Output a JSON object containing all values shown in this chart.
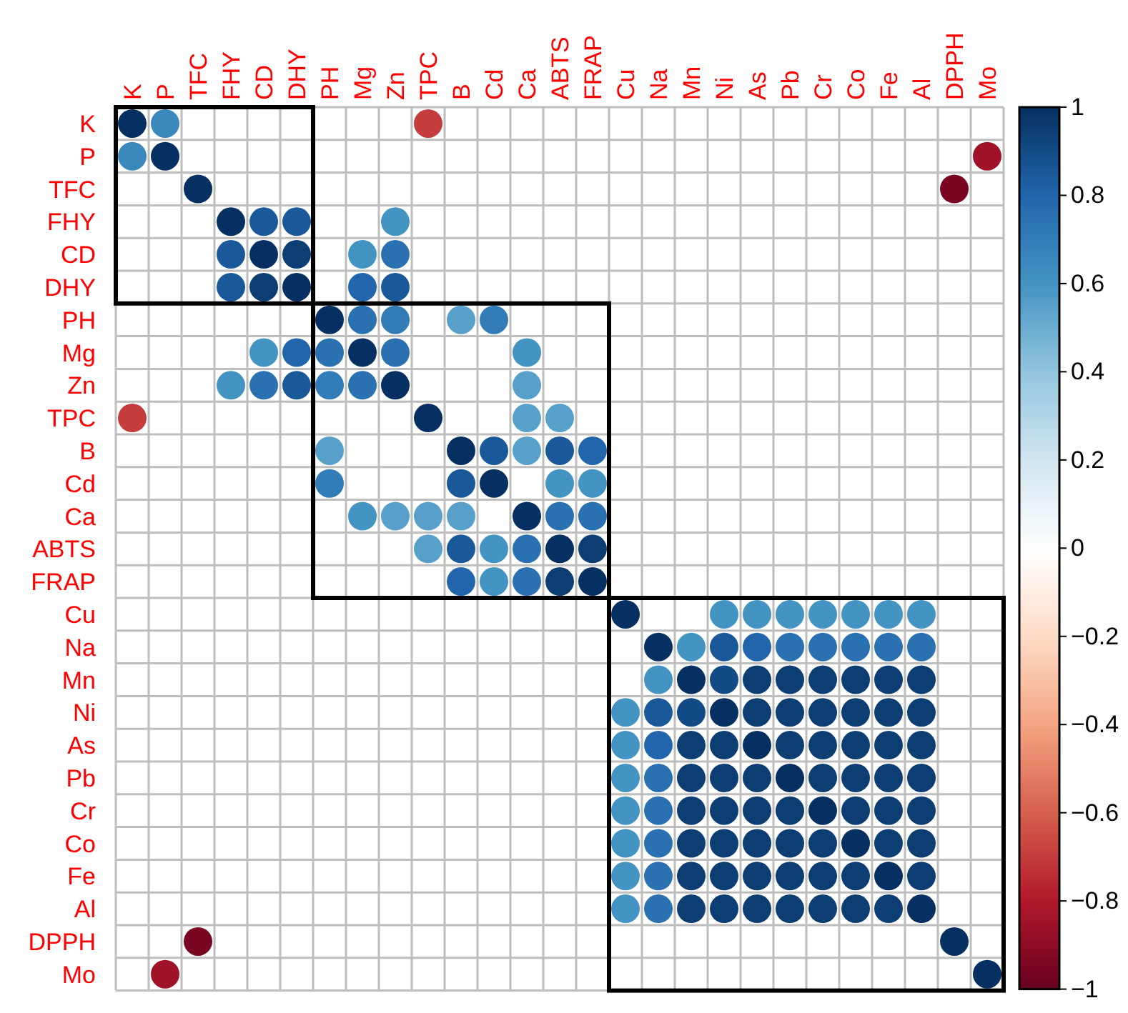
{
  "chart_data": {
    "type": "heatmap",
    "categories": [
      "K",
      "P",
      "TFC",
      "FHY",
      "CD",
      "DHY",
      "PH",
      "Mg",
      "Zn",
      "TPC",
      "B",
      "Cd",
      "Ca",
      "ABTS",
      "FRAP",
      "Cu",
      "Na",
      "Mn",
      "Ni",
      "As",
      "Pb",
      "Cr",
      "Co",
      "Fe",
      "Al",
      "DPPH",
      "Mo"
    ],
    "y_categories": [
      "K",
      "P",
      "TFC",
      "FHY",
      "CD",
      "DHY",
      "PH",
      "Mg",
      "Zn",
      "TPC",
      "B",
      "Cd",
      "Ca",
      "ABTS",
      "FRAP",
      "Cu",
      "Na",
      "Mn",
      "Ni",
      "As",
      "Pb",
      "Cr",
      "Co",
      "Fe",
      "Al",
      "DPPH",
      "Mo"
    ],
    "cells": [
      [
        1,
        0.65,
        null,
        null,
        null,
        null,
        null,
        null,
        null,
        -0.7,
        null,
        null,
        null,
        null,
        null,
        null,
        null,
        null,
        null,
        null,
        null,
        null,
        null,
        null,
        null,
        null,
        null
      ],
      [
        0.65,
        1,
        null,
        null,
        null,
        null,
        null,
        null,
        null,
        null,
        null,
        null,
        null,
        null,
        null,
        null,
        null,
        null,
        null,
        null,
        null,
        null,
        null,
        null,
        null,
        null,
        -0.85
      ],
      [
        null,
        null,
        1,
        null,
        null,
        null,
        null,
        null,
        null,
        null,
        null,
        null,
        null,
        null,
        null,
        null,
        null,
        null,
        null,
        null,
        null,
        null,
        null,
        null,
        null,
        -0.95,
        null
      ],
      [
        null,
        null,
        null,
        1,
        0.85,
        0.85,
        null,
        null,
        0.6,
        null,
        null,
        null,
        null,
        null,
        null,
        null,
        null,
        null,
        null,
        null,
        null,
        null,
        null,
        null,
        null,
        null,
        null
      ],
      [
        null,
        null,
        null,
        0.85,
        1,
        0.95,
        null,
        0.6,
        0.75,
        null,
        null,
        null,
        null,
        null,
        null,
        null,
        null,
        null,
        null,
        null,
        null,
        null,
        null,
        null,
        null,
        null,
        null
      ],
      [
        null,
        null,
        null,
        0.85,
        0.95,
        1,
        null,
        0.8,
        0.85,
        null,
        null,
        null,
        null,
        null,
        null,
        null,
        null,
        null,
        null,
        null,
        null,
        null,
        null,
        null,
        null,
        null,
        null
      ],
      [
        null,
        null,
        null,
        null,
        null,
        null,
        1,
        0.75,
        0.7,
        null,
        0.55,
        0.7,
        null,
        null,
        null,
        null,
        null,
        null,
        null,
        null,
        null,
        null,
        null,
        null,
        null,
        null,
        null
      ],
      [
        null,
        null,
        null,
        null,
        0.6,
        0.8,
        0.75,
        1,
        0.75,
        null,
        null,
        null,
        0.6,
        null,
        null,
        null,
        null,
        null,
        null,
        null,
        null,
        null,
        null,
        null,
        null,
        null,
        null
      ],
      [
        null,
        null,
        null,
        0.6,
        0.75,
        0.85,
        0.7,
        0.75,
        1,
        null,
        null,
        null,
        0.55,
        null,
        null,
        null,
        null,
        null,
        null,
        null,
        null,
        null,
        null,
        null,
        null,
        null,
        null
      ],
      [
        -0.7,
        null,
        null,
        null,
        null,
        null,
        null,
        null,
        null,
        1,
        null,
        null,
        0.55,
        0.55,
        null,
        null,
        null,
        null,
        null,
        null,
        null,
        null,
        null,
        null,
        null,
        null,
        null
      ],
      [
        null,
        null,
        null,
        null,
        null,
        null,
        0.55,
        null,
        null,
        null,
        1,
        0.85,
        0.55,
        0.85,
        0.8,
        null,
        null,
        null,
        null,
        null,
        null,
        null,
        null,
        null,
        null,
        null,
        null
      ],
      [
        null,
        null,
        null,
        null,
        null,
        null,
        0.7,
        null,
        null,
        null,
        0.85,
        1,
        null,
        0.6,
        0.6,
        null,
        null,
        null,
        null,
        null,
        null,
        null,
        null,
        null,
        null,
        null,
        null
      ],
      [
        null,
        null,
        null,
        null,
        null,
        null,
        null,
        0.6,
        0.55,
        0.55,
        0.55,
        null,
        1,
        0.75,
        0.75,
        null,
        null,
        null,
        null,
        null,
        null,
        null,
        null,
        null,
        null,
        null,
        null
      ],
      [
        null,
        null,
        null,
        null,
        null,
        null,
        null,
        null,
        null,
        0.55,
        0.85,
        0.6,
        0.75,
        1,
        0.95,
        null,
        null,
        null,
        null,
        null,
        null,
        null,
        null,
        null,
        null,
        null,
        null
      ],
      [
        null,
        null,
        null,
        null,
        null,
        null,
        null,
        null,
        null,
        null,
        0.8,
        0.6,
        0.75,
        0.95,
        1,
        null,
        null,
        null,
        null,
        null,
        null,
        null,
        null,
        null,
        null,
        null,
        null
      ],
      [
        null,
        null,
        null,
        null,
        null,
        null,
        null,
        null,
        null,
        null,
        null,
        null,
        null,
        null,
        null,
        1,
        null,
        null,
        0.6,
        0.6,
        0.6,
        0.6,
        0.6,
        0.6,
        0.6,
        null,
        null
      ],
      [
        null,
        null,
        null,
        null,
        null,
        null,
        null,
        null,
        null,
        null,
        null,
        null,
        null,
        null,
        null,
        null,
        1,
        0.6,
        0.85,
        0.8,
        0.75,
        0.75,
        0.75,
        0.75,
        0.75,
        null,
        null
      ],
      [
        null,
        null,
        null,
        null,
        null,
        null,
        null,
        null,
        null,
        null,
        null,
        null,
        null,
        null,
        null,
        null,
        0.6,
        1,
        0.9,
        0.95,
        0.95,
        0.95,
        0.95,
        0.95,
        0.95,
        null,
        null
      ],
      [
        null,
        null,
        null,
        null,
        null,
        null,
        null,
        null,
        null,
        null,
        null,
        null,
        null,
        null,
        null,
        0.6,
        0.85,
        0.9,
        1,
        0.95,
        0.95,
        0.95,
        0.95,
        0.95,
        0.95,
        null,
        null
      ],
      [
        null,
        null,
        null,
        null,
        null,
        null,
        null,
        null,
        null,
        null,
        null,
        null,
        null,
        null,
        null,
        0.6,
        0.8,
        0.95,
        0.95,
        1,
        0.95,
        0.95,
        0.95,
        0.95,
        0.95,
        null,
        null
      ],
      [
        null,
        null,
        null,
        null,
        null,
        null,
        null,
        null,
        null,
        null,
        null,
        null,
        null,
        null,
        null,
        0.6,
        0.75,
        0.95,
        0.95,
        0.95,
        1,
        0.95,
        0.95,
        0.95,
        0.95,
        null,
        null
      ],
      [
        null,
        null,
        null,
        null,
        null,
        null,
        null,
        null,
        null,
        null,
        null,
        null,
        null,
        null,
        null,
        0.6,
        0.75,
        0.95,
        0.95,
        0.95,
        0.95,
        1,
        0.95,
        0.95,
        0.95,
        null,
        null
      ],
      [
        null,
        null,
        null,
        null,
        null,
        null,
        null,
        null,
        null,
        null,
        null,
        null,
        null,
        null,
        null,
        0.6,
        0.75,
        0.95,
        0.95,
        0.95,
        0.95,
        0.95,
        1,
        0.95,
        0.95,
        null,
        null
      ],
      [
        null,
        null,
        null,
        null,
        null,
        null,
        null,
        null,
        null,
        null,
        null,
        null,
        null,
        null,
        null,
        0.6,
        0.75,
        0.95,
        0.95,
        0.95,
        0.95,
        0.95,
        0.95,
        1,
        0.95,
        null,
        null
      ],
      [
        null,
        null,
        null,
        null,
        null,
        null,
        null,
        null,
        null,
        null,
        null,
        null,
        null,
        null,
        null,
        0.6,
        0.75,
        0.95,
        0.95,
        0.95,
        0.95,
        0.95,
        0.95,
        0.95,
        1,
        null,
        null
      ],
      [
        null,
        null,
        -0.95,
        null,
        null,
        null,
        null,
        null,
        null,
        null,
        null,
        null,
        null,
        null,
        null,
        null,
        null,
        null,
        null,
        null,
        null,
        null,
        null,
        null,
        null,
        1,
        null
      ],
      [
        null,
        -0.85,
        null,
        null,
        null,
        null,
        null,
        null,
        null,
        null,
        null,
        null,
        null,
        null,
        null,
        null,
        null,
        null,
        null,
        null,
        null,
        null,
        null,
        null,
        null,
        null,
        1
      ]
    ],
    "clim": [
      -1,
      1
    ],
    "cticks": [
      -1,
      -0.8,
      -0.6,
      -0.4,
      -0.2,
      0,
      0.2,
      0.4,
      0.6,
      0.8,
      1
    ]
  }
}
